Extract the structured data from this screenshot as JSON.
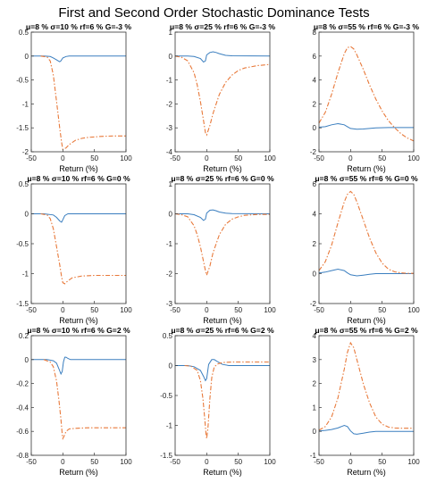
{
  "title": "First and Second Order Stochastic Dominance Tests",
  "colors": {
    "fsd": "#3a7ebf",
    "ssd": "#e8793a",
    "axis": "#333333"
  },
  "chart_data": [
    {
      "type": "line",
      "title": "μ=8 % σ=10 % rf=6 % G=-3 %",
      "xlabel": "Return (%)",
      "xlim": [
        -50,
        100
      ],
      "ylim": [
        -2,
        0.5
      ],
      "xticks": [
        -50,
        0,
        50,
        100
      ],
      "yticks": [
        -2,
        -1.5,
        -1,
        -0.5,
        0,
        0.5
      ],
      "ytick_labels": [
        "-2",
        "-1.5",
        "-1",
        "-0.5",
        "0",
        "0.5"
      ],
      "series": [
        {
          "style": "solid",
          "x": [
            -50,
            -30,
            -20,
            -15,
            -10,
            -5,
            -3,
            0,
            5,
            10,
            100
          ],
          "y": [
            0,
            0,
            -0.01,
            -0.04,
            -0.08,
            -0.12,
            -0.1,
            -0.04,
            -0.01,
            0,
            0
          ]
        },
        {
          "style": "dashdot",
          "x": [
            -35,
            -25,
            -20,
            -15,
            -10,
            -5,
            -2,
            0,
            5,
            10,
            20,
            30,
            40,
            50,
            60,
            80,
            100
          ],
          "y": [
            0,
            -0.02,
            -0.1,
            -0.4,
            -0.95,
            -1.5,
            -1.8,
            -1.95,
            -1.92,
            -1.85,
            -1.76,
            -1.72,
            -1.7,
            -1.69,
            -1.68,
            -1.67,
            -1.67
          ]
        }
      ]
    },
    {
      "type": "line",
      "title": "μ=8 % σ=25 % rf=6 % G=-3 %",
      "xlabel": "Return (%)",
      "xlim": [
        -50,
        100
      ],
      "ylim": [
        -4,
        1
      ],
      "xticks": [
        -50,
        0,
        50,
        100
      ],
      "yticks": [
        -4,
        -3,
        -2,
        -1,
        0,
        1
      ],
      "ytick_labels": [
        "-4",
        "-3",
        "-2",
        "-1",
        "0",
        "1"
      ],
      "series": [
        {
          "style": "solid",
          "x": [
            -50,
            -30,
            -20,
            -10,
            -5,
            -2,
            0,
            5,
            10,
            15,
            20,
            30,
            40,
            100
          ],
          "y": [
            0,
            0,
            -0.02,
            -0.1,
            -0.25,
            -0.2,
            0.05,
            0.15,
            0.18,
            0.15,
            0.1,
            0.03,
            0.01,
            0
          ]
        },
        {
          "style": "dashdot",
          "x": [
            -50,
            -40,
            -30,
            -20,
            -15,
            -10,
            -5,
            -2,
            0,
            5,
            10,
            15,
            20,
            30,
            40,
            50,
            60,
            80,
            100
          ],
          "y": [
            0,
            -0.05,
            -0.2,
            -0.7,
            -1.2,
            -1.9,
            -2.7,
            -3.2,
            -3.3,
            -2.9,
            -2.4,
            -2.0,
            -1.6,
            -1.1,
            -0.8,
            -0.6,
            -0.5,
            -0.4,
            -0.35
          ]
        }
      ]
    },
    {
      "type": "line",
      "title": "μ=8 % σ=55 % rf=6 % G=-3 %",
      "xlabel": "Return (%)",
      "xlim": [
        -50,
        100
      ],
      "ylim": [
        -2,
        8
      ],
      "xticks": [
        -50,
        0,
        50,
        100
      ],
      "yticks": [
        -2,
        0,
        2,
        4,
        6,
        8
      ],
      "ytick_labels": [
        "-2",
        "0",
        "2",
        "4",
        "6",
        "8"
      ],
      "series": [
        {
          "style": "solid",
          "x": [
            -50,
            -40,
            -30,
            -20,
            -10,
            -5,
            0,
            10,
            20,
            30,
            40,
            60,
            100
          ],
          "y": [
            0.05,
            0.1,
            0.25,
            0.35,
            0.25,
            0.1,
            -0.05,
            -0.12,
            -0.1,
            -0.05,
            0,
            0.02,
            0.02
          ]
        },
        {
          "style": "dashdot",
          "x": [
            -50,
            -40,
            -30,
            -20,
            -10,
            -5,
            0,
            5,
            10,
            20,
            30,
            40,
            50,
            60,
            70,
            80,
            90,
            100
          ],
          "y": [
            0.4,
            1.3,
            2.8,
            4.6,
            6.2,
            6.7,
            6.8,
            6.6,
            6.1,
            4.9,
            3.6,
            2.4,
            1.4,
            0.6,
            0,
            -0.5,
            -0.85,
            -1.1
          ]
        }
      ]
    },
    {
      "type": "line",
      "title": "μ=8 % σ=10 % rf=6 % G=0 %",
      "xlabel": "Return (%)",
      "xlim": [
        -50,
        100
      ],
      "ylim": [
        -1.5,
        0.5
      ],
      "xticks": [
        -50,
        0,
        50,
        100
      ],
      "yticks": [
        -1.5,
        -1,
        -0.5,
        0,
        0.5
      ],
      "ytick_labels": [
        "-1.5",
        "-1",
        "-0.5",
        "0",
        "0.5"
      ],
      "series": [
        {
          "style": "solid",
          "x": [
            -50,
            -30,
            -15,
            -10,
            -5,
            -2,
            0,
            3,
            8,
            100
          ],
          "y": [
            0,
            0,
            -0.02,
            -0.06,
            -0.12,
            -0.14,
            -0.1,
            -0.03,
            0,
            0
          ]
        },
        {
          "style": "dashdot",
          "x": [
            -35,
            -25,
            -20,
            -15,
            -10,
            -5,
            -2,
            0,
            3,
            8,
            15,
            30,
            50,
            75,
            100
          ],
          "y": [
            0,
            -0.02,
            -0.08,
            -0.25,
            -0.55,
            -0.85,
            -1.05,
            -1.15,
            -1.17,
            -1.12,
            -1.07,
            -1.04,
            -1.03,
            -1.03,
            -1.03
          ]
        }
      ]
    },
    {
      "type": "line",
      "title": "μ=8 % σ=25 % rf=6 % G=0 %",
      "xlabel": "Return (%)",
      "xlim": [
        -50,
        100
      ],
      "ylim": [
        -3,
        1
      ],
      "xticks": [
        -50,
        0,
        50,
        100
      ],
      "yticks": [
        -3,
        -2,
        -1,
        0,
        1
      ],
      "ytick_labels": [
        "-3",
        "-2",
        "-1",
        "0",
        "1"
      ],
      "series": [
        {
          "style": "solid",
          "x": [
            -50,
            -30,
            -20,
            -10,
            -5,
            -2,
            0,
            5,
            10,
            15,
            20,
            30,
            40,
            100
          ],
          "y": [
            0,
            0,
            -0.03,
            -0.12,
            -0.22,
            -0.18,
            0.02,
            0.12,
            0.13,
            0.1,
            0.06,
            0.02,
            0.01,
            0
          ]
        },
        {
          "style": "dashdot",
          "x": [
            -50,
            -40,
            -30,
            -20,
            -15,
            -10,
            -5,
            -2,
            0,
            5,
            10,
            20,
            30,
            40,
            50,
            60,
            80,
            100
          ],
          "y": [
            0,
            -0.03,
            -0.1,
            -0.4,
            -0.7,
            -1.1,
            -1.6,
            -1.9,
            -2.05,
            -1.75,
            -1.3,
            -0.7,
            -0.35,
            -0.18,
            -0.1,
            -0.05,
            -0.02,
            -0.02
          ]
        }
      ]
    },
    {
      "type": "line",
      "title": "μ=8 % σ=55 % rf=6 % G=0 %",
      "xlabel": "Return (%)",
      "xlim": [
        -50,
        100
      ],
      "ylim": [
        -2,
        6
      ],
      "xticks": [
        -50,
        0,
        50,
        100
      ],
      "yticks": [
        -2,
        0,
        2,
        4,
        6
      ],
      "ytick_labels": [
        "-2",
        "0",
        "2",
        "4",
        "6"
      ],
      "series": [
        {
          "style": "solid",
          "x": [
            -50,
            -40,
            -30,
            -20,
            -10,
            -5,
            0,
            10,
            20,
            30,
            40,
            60,
            100
          ],
          "y": [
            0.05,
            0.1,
            0.2,
            0.3,
            0.2,
            0.05,
            -0.08,
            -0.15,
            -0.1,
            -0.05,
            0,
            0,
            0
          ]
        },
        {
          "style": "dashdot",
          "x": [
            -50,
            -40,
            -30,
            -20,
            -10,
            -5,
            0,
            5,
            10,
            20,
            30,
            40,
            50,
            60,
            70,
            80,
            90,
            100
          ],
          "y": [
            0.2,
            0.8,
            1.9,
            3.4,
            4.8,
            5.3,
            5.5,
            5.3,
            4.8,
            3.6,
            2.4,
            1.4,
            0.7,
            0.3,
            0.12,
            0.05,
            0.02,
            0.02
          ]
        }
      ]
    },
    {
      "type": "line",
      "title": "μ=8 % σ=10 % rf=6 % G=2 %",
      "xlabel": "Return (%)",
      "xlim": [
        -50,
        100
      ],
      "ylim": [
        -0.8,
        0.2
      ],
      "xticks": [
        -50,
        0,
        50,
        100
      ],
      "yticks": [
        -0.8,
        -0.6,
        -0.4,
        -0.2,
        0,
        0.2
      ],
      "ytick_labels": [
        "-0.8",
        "-0.6",
        "-0.4",
        "-0.2",
        "0",
        "0.2"
      ],
      "series": [
        {
          "style": "solid",
          "x": [
            -50,
            -25,
            -15,
            -10,
            -6,
            -3,
            -1,
            1,
            3,
            5,
            8,
            12,
            100
          ],
          "y": [
            0,
            0,
            -0.01,
            -0.03,
            -0.08,
            -0.12,
            -0.1,
            -0.02,
            0.02,
            0.02,
            0.01,
            0,
            0
          ]
        },
        {
          "style": "dashdot",
          "x": [
            -30,
            -20,
            -15,
            -10,
            -6,
            -3,
            -1,
            0,
            2,
            5,
            10,
            20,
            40,
            60,
            80,
            100
          ],
          "y": [
            0,
            -0.02,
            -0.06,
            -0.18,
            -0.35,
            -0.5,
            -0.62,
            -0.66,
            -0.64,
            -0.6,
            -0.58,
            -0.575,
            -0.57,
            -0.57,
            -0.57,
            -0.57
          ]
        }
      ]
    },
    {
      "type": "line",
      "title": "μ=8 % σ=25 % rf=6 % G=2 %",
      "xlabel": "Return (%)",
      "xlim": [
        -50,
        100
      ],
      "ylim": [
        -1.5,
        0.5
      ],
      "xticks": [
        -50,
        0,
        50,
        100
      ],
      "yticks": [
        -1.5,
        -1,
        -0.5,
        0,
        0.5
      ],
      "ytick_labels": [
        "-1.5",
        "-1",
        "-0.5",
        "0",
        "0.5"
      ],
      "series": [
        {
          "style": "solid",
          "x": [
            -50,
            -30,
            -20,
            -10,
            -5,
            -2,
            0,
            3,
            8,
            12,
            18,
            25,
            35,
            100
          ],
          "y": [
            0,
            0,
            -0.02,
            -0.08,
            -0.18,
            -0.25,
            -0.22,
            0.02,
            0.1,
            0.1,
            0.06,
            0.02,
            0,
            0
          ]
        },
        {
          "style": "dashdot",
          "x": [
            -35,
            -25,
            -15,
            -10,
            -6,
            -3,
            -1,
            0,
            2,
            5,
            8,
            12,
            18,
            25,
            40,
            60,
            100
          ],
          "y": [
            0,
            -0.01,
            -0.08,
            -0.25,
            -0.55,
            -0.9,
            -1.15,
            -1.22,
            -1.05,
            -0.55,
            -0.2,
            -0.02,
            0.03,
            0.05,
            0.06,
            0.06,
            0.06
          ]
        }
      ]
    },
    {
      "type": "line",
      "title": "μ=8 % σ=55 % rf=6 % G=2 %",
      "xlabel": "Return (%)",
      "xlim": [
        -50,
        100
      ],
      "ylim": [
        -1,
        4
      ],
      "xticks": [
        -50,
        0,
        50,
        100
      ],
      "yticks": [
        -1,
        0,
        1,
        2,
        3,
        4
      ],
      "ytick_labels": [
        "-1",
        "0",
        "1",
        "2",
        "3",
        "4"
      ],
      "series": [
        {
          "style": "solid",
          "x": [
            -50,
            -40,
            -30,
            -20,
            -10,
            -5,
            0,
            5,
            10,
            20,
            30,
            40,
            60,
            100
          ],
          "y": [
            0.02,
            0.04,
            0.08,
            0.14,
            0.25,
            0.2,
            0.02,
            -0.1,
            -0.12,
            -0.08,
            -0.03,
            0,
            0,
            0
          ]
        },
        {
          "style": "dashdot",
          "x": [
            -50,
            -40,
            -30,
            -20,
            -10,
            -5,
            0,
            5,
            10,
            20,
            30,
            40,
            50,
            60,
            70,
            80,
            90,
            100
          ],
          "y": [
            0.05,
            0.2,
            0.6,
            1.4,
            2.6,
            3.3,
            3.7,
            3.5,
            3.0,
            2.0,
            1.2,
            0.6,
            0.3,
            0.18,
            0.14,
            0.13,
            0.13,
            0.13
          ]
        }
      ]
    }
  ]
}
